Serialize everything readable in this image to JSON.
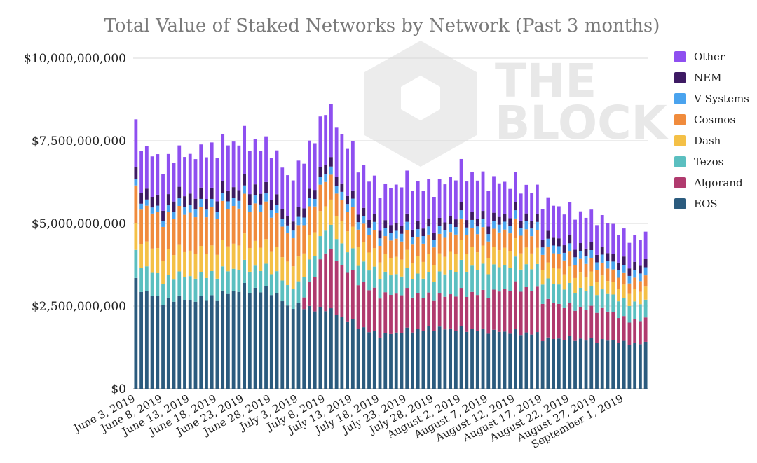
{
  "chart_data": {
    "type": "bar",
    "stacked": true,
    "title": "Total Value of Staked Networks by Network (Past 3 months)",
    "xlabel": "",
    "ylabel": "",
    "ylim": [
      0,
      10000000000
    ],
    "y_ticks": [
      {
        "value": 0,
        "label": "$0"
      },
      {
        "value": 2500000000,
        "label": "$2,500,000,000"
      },
      {
        "value": 5000000000,
        "label": "$5,000,000,000"
      },
      {
        "value": 7500000000,
        "label": "$7,500,000,000"
      },
      {
        "value": 10000000000,
        "label": "$10,000,000,000"
      }
    ],
    "grid": "horizontal",
    "legend_position": "right",
    "x_tick_labels": [
      {
        "index": 0,
        "label": "June 3, 2019"
      },
      {
        "index": 5,
        "label": "June 8, 2019"
      },
      {
        "index": 10,
        "label": "June 13, 2019"
      },
      {
        "index": 15,
        "label": "June 18, 2019"
      },
      {
        "index": 20,
        "label": "June 23, 2019"
      },
      {
        "index": 25,
        "label": "June 28, 2019"
      },
      {
        "index": 30,
        "label": "July 3, 2019"
      },
      {
        "index": 35,
        "label": "July 8, 2019"
      },
      {
        "index": 40,
        "label": "July 13, 2019"
      },
      {
        "index": 45,
        "label": "July 18, 2019"
      },
      {
        "index": 50,
        "label": "July 23, 2019"
      },
      {
        "index": 55,
        "label": "July 28, 2019"
      },
      {
        "index": 60,
        "label": "August 2, 2019"
      },
      {
        "index": 65,
        "label": "August 7, 2019"
      },
      {
        "index": 70,
        "label": "August 12, 2019"
      },
      {
        "index": 75,
        "label": "August 17, 2019"
      },
      {
        "index": 80,
        "label": "August 22, 2019"
      },
      {
        "index": 85,
        "label": "August 27, 2019"
      },
      {
        "index": 90,
        "label": "September 1, 2019"
      }
    ],
    "x_start": "2019-06-03",
    "x_end": "2019-09-05",
    "anchor_dates": [
      "2019-06-03",
      "2019-06-08",
      "2019-06-13",
      "2019-06-18",
      "2019-06-23",
      "2019-06-28",
      "2019-07-01",
      "2019-07-03",
      "2019-07-08",
      "2019-07-13",
      "2019-07-18",
      "2019-07-23",
      "2019-07-28",
      "2019-08-02",
      "2019-08-07",
      "2019-08-12",
      "2019-08-16",
      "2019-08-17",
      "2019-08-22",
      "2019-08-27",
      "2019-08-30",
      "2019-09-01",
      "2019-09-05"
    ],
    "series": [
      {
        "name": "EOS",
        "color": "#2b5b7e",
        "anchor_values": [
          3350000000,
          2850000000,
          2800000000,
          2950000000,
          3200000000,
          3150000000,
          2650000000,
          2600000000,
          2550000000,
          2100000000,
          1700000000,
          1850000000,
          1950000000,
          1900000000,
          1850000000,
          1800000000,
          1750000000,
          1600000000,
          1600000000,
          1550000000,
          1550000000,
          1450000000,
          1450000000
        ]
      },
      {
        "name": "Algorand",
        "color": "#b03a6e",
        "anchor_values": [
          0,
          0,
          0,
          0,
          0,
          0,
          0,
          0,
          1900000000,
          1500000000,
          1300000000,
          1200000000,
          1000000000,
          1150000000,
          1200000000,
          1450000000,
          1400000000,
          1250000000,
          1000000000,
          1000000000,
          900000000,
          750000000,
          750000000
        ]
      },
      {
        "name": "Tezos",
        "color": "#5bbfc0",
        "anchor_values": [
          850000000,
          700000000,
          750000000,
          750000000,
          700000000,
          700000000,
          650000000,
          650000000,
          750000000,
          650000000,
          650000000,
          600000000,
          650000000,
          850000000,
          800000000,
          750000000,
          700000000,
          650000000,
          600000000,
          600000000,
          550000000,
          550000000,
          550000000
        ]
      },
      {
        "name": "Dash",
        "color": "#f4c046",
        "anchor_values": [
          800000000,
          800000000,
          800000000,
          800000000,
          800000000,
          750000000,
          750000000,
          750000000,
          800000000,
          650000000,
          550000000,
          550000000,
          550000000,
          600000000,
          550000000,
          550000000,
          500000000,
          500000000,
          500000000,
          450000000,
          400000000,
          400000000,
          400000000
        ]
      },
      {
        "name": "Cosmos",
        "color": "#f08b3c",
        "anchor_values": [
          1150000000,
          1150000000,
          1200000000,
          1200000000,
          1200000000,
          1150000000,
          900000000,
          950000000,
          800000000,
          600000000,
          550000000,
          600000000,
          600000000,
          650000000,
          550000000,
          600000000,
          550000000,
          500000000,
          450000000,
          400000000,
          400000000,
          350000000,
          350000000
        ]
      },
      {
        "name": "V Systems",
        "color": "#4aa3ee",
        "anchor_values": [
          200000000,
          200000000,
          250000000,
          250000000,
          250000000,
          250000000,
          250000000,
          250000000,
          250000000,
          250000000,
          250000000,
          250000000,
          250000000,
          250000000,
          250000000,
          250000000,
          250000000,
          250000000,
          250000000,
          250000000,
          250000000,
          250000000,
          250000000
        ]
      },
      {
        "name": "NEM",
        "color": "#3d1a63",
        "anchor_values": [
          350000000,
          350000000,
          350000000,
          350000000,
          350000000,
          350000000,
          300000000,
          300000000,
          300000000,
          250000000,
          250000000,
          250000000,
          250000000,
          250000000,
          250000000,
          250000000,
          250000000,
          250000000,
          250000000,
          250000000,
          250000000,
          250000000,
          250000000
        ]
      },
      {
        "name": "Other",
        "color": "#8e4ff0",
        "anchor_values": [
          1450000000,
          1250000000,
          1250000000,
          1450000000,
          1450000000,
          1400000000,
          1300000000,
          1400000000,
          1650000000,
          1500000000,
          1100000000,
          1300000000,
          1200000000,
          1300000000,
          1200000000,
          900000000,
          900000000,
          1050000000,
          1000000000,
          1000000000,
          950000000,
          850000000,
          850000000
        ]
      }
    ],
    "total_pattern": [
      1.0,
      0.9,
      0.94,
      0.92,
      0.95,
      0.89,
      0.97,
      0.93,
      1.0,
      0.95,
      0.96,
      0.93,
      0.98,
      0.92,
      0.97,
      0.9,
      0.99,
      0.94,
      0.95,
      0.93,
      1.0,
      0.91,
      0.96,
      0.92,
      0.98,
      0.9,
      0.97,
      0.94,
      0.95,
      0.92,
      1.0,
      0.93,
      0.97,
      0.91,
      0.96,
      0.92,
      0.99,
      0.94,
      0.95,
      0.93,
      1.0,
      0.9,
      0.96,
      0.92,
      0.98,
      0.91,
      0.97,
      0.94,
      0.95,
      0.93,
      1.0,
      0.91,
      0.96,
      0.92,
      0.98,
      0.9,
      0.97,
      0.93,
      0.95,
      0.92,
      1.0,
      0.91,
      0.96,
      0.93,
      0.98,
      0.9,
      0.97,
      0.94,
      0.95,
      0.92,
      1.0,
      0.91,
      0.96,
      0.93,
      0.98,
      0.9,
      0.97,
      0.94,
      0.95,
      0.92,
      1.0,
      0.91,
      0.96,
      0.93,
      0.98,
      0.9,
      0.97,
      0.94,
      0.95,
      0.92,
      1.0,
      0.91,
      0.96,
      0.93,
      0.98
    ]
  },
  "watermark": {
    "line1": "THE",
    "line2": "BLOCK"
  }
}
